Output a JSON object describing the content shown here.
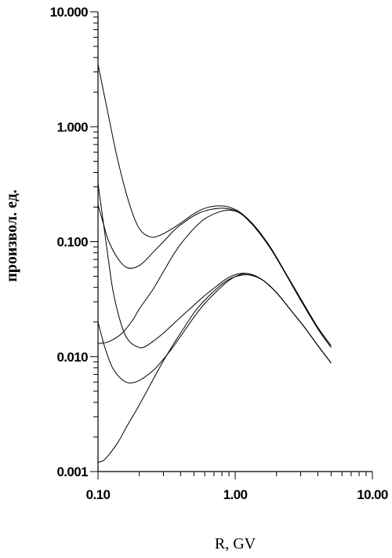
{
  "chart_data": {
    "type": "line",
    "title": "",
    "xlabel": "R, GV",
    "ylabel": "произвол. ед.",
    "xscale": "log",
    "yscale": "log",
    "xlim": [
      0.1,
      10
    ],
    "ylim": [
      0.001,
      10
    ],
    "grid": false,
    "legend": "none",
    "line_color": "#000000",
    "xticks": [
      {
        "value": 0.1,
        "label": "0.10"
      },
      {
        "value": 1,
        "label": "1.00"
      },
      {
        "value": 10,
        "label": "10.00"
      }
    ],
    "yticks": [
      {
        "value": 0.001,
        "label": "0.001"
      },
      {
        "value": 0.01,
        "label": "0.010"
      },
      {
        "value": 0.1,
        "label": "0.100"
      },
      {
        "value": 1,
        "label": "1.000"
      },
      {
        "value": 10,
        "label": "10.000"
      }
    ],
    "series": [
      {
        "x": [
          0.1,
          0.12,
          0.14,
          0.17,
          0.2,
          0.24,
          0.28,
          0.33,
          0.4,
          0.5,
          0.6,
          0.75,
          0.9,
          1.1,
          1.4,
          1.8,
          2.3,
          3.0,
          4.0,
          5.0
        ],
        "y": [
          3.5,
          1.2,
          0.5,
          0.21,
          0.13,
          0.11,
          0.113,
          0.125,
          0.145,
          0.175,
          0.195,
          0.205,
          0.2,
          0.178,
          0.135,
          0.09,
          0.055,
          0.032,
          0.018,
          0.0125
        ]
      },
      {
        "x": [
          0.1,
          0.11,
          0.12,
          0.14,
          0.16,
          0.18,
          0.2,
          0.22,
          0.25,
          0.3,
          0.35,
          0.4,
          0.5,
          0.6,
          0.75,
          0.9,
          1.1,
          1.4,
          1.8,
          2.3,
          3.0,
          4.0,
          5.0
        ],
        "y": [
          0.21,
          0.14,
          0.1,
          0.071,
          0.06,
          0.059,
          0.062,
          0.068,
          0.08,
          0.1,
          0.122,
          0.14,
          0.168,
          0.185,
          0.195,
          0.193,
          0.175,
          0.132,
          0.088,
          0.054,
          0.031,
          0.0175,
          0.012
        ]
      },
      {
        "x": [
          0.1,
          0.12,
          0.15,
          0.18,
          0.2,
          0.25,
          0.3,
          0.35,
          0.4,
          0.5,
          0.6,
          0.75,
          0.9,
          1.1,
          1.4,
          1.8,
          2.3,
          3.0,
          4.0,
          5.0
        ],
        "y": [
          0.013,
          0.0135,
          0.016,
          0.021,
          0.026,
          0.038,
          0.055,
          0.075,
          0.095,
          0.13,
          0.158,
          0.18,
          0.188,
          0.175,
          0.132,
          0.088,
          0.054,
          0.031,
          0.0175,
          0.012
        ]
      },
      {
        "x": [
          0.1,
          0.11,
          0.12,
          0.13,
          0.15,
          0.17,
          0.2,
          0.22,
          0.25,
          0.3,
          0.35,
          0.4,
          0.5,
          0.6,
          0.75,
          0.9,
          1.1,
          1.3,
          1.6,
          2.0,
          2.5,
          3.2,
          4.0,
          5.0
        ],
        "y": [
          0.32,
          0.14,
          0.065,
          0.035,
          0.018,
          0.0135,
          0.012,
          0.0122,
          0.0135,
          0.016,
          0.019,
          0.022,
          0.028,
          0.034,
          0.042,
          0.049,
          0.053,
          0.052,
          0.046,
          0.036,
          0.026,
          0.018,
          0.0125,
          0.0088
        ]
      },
      {
        "x": [
          0.1,
          0.11,
          0.12,
          0.13,
          0.15,
          0.17,
          0.2,
          0.25,
          0.3,
          0.35,
          0.4,
          0.5,
          0.6,
          0.75,
          0.9,
          1.1,
          1.3,
          1.6,
          2.0,
          2.5,
          3.2,
          4.0,
          5.0
        ],
        "y": [
          0.02,
          0.013,
          0.0095,
          0.0077,
          0.0063,
          0.0059,
          0.0062,
          0.0075,
          0.0095,
          0.012,
          0.015,
          0.022,
          0.029,
          0.038,
          0.046,
          0.052,
          0.052,
          0.046,
          0.036,
          0.026,
          0.018,
          0.0125,
          0.0088
        ]
      },
      {
        "x": [
          0.1,
          0.11,
          0.12,
          0.14,
          0.16,
          0.2,
          0.25,
          0.3,
          0.35,
          0.4,
          0.5,
          0.6,
          0.75,
          0.9,
          1.1,
          1.3,
          1.6,
          2.0,
          2.5,
          3.2,
          4.0,
          5.0
        ],
        "y": [
          0.0012,
          0.00125,
          0.0014,
          0.0018,
          0.0024,
          0.0038,
          0.0062,
          0.0092,
          0.0125,
          0.016,
          0.024,
          0.031,
          0.04,
          0.047,
          0.051,
          0.051,
          0.046,
          0.036,
          0.026,
          0.018,
          0.0125,
          0.0088
        ]
      }
    ]
  }
}
